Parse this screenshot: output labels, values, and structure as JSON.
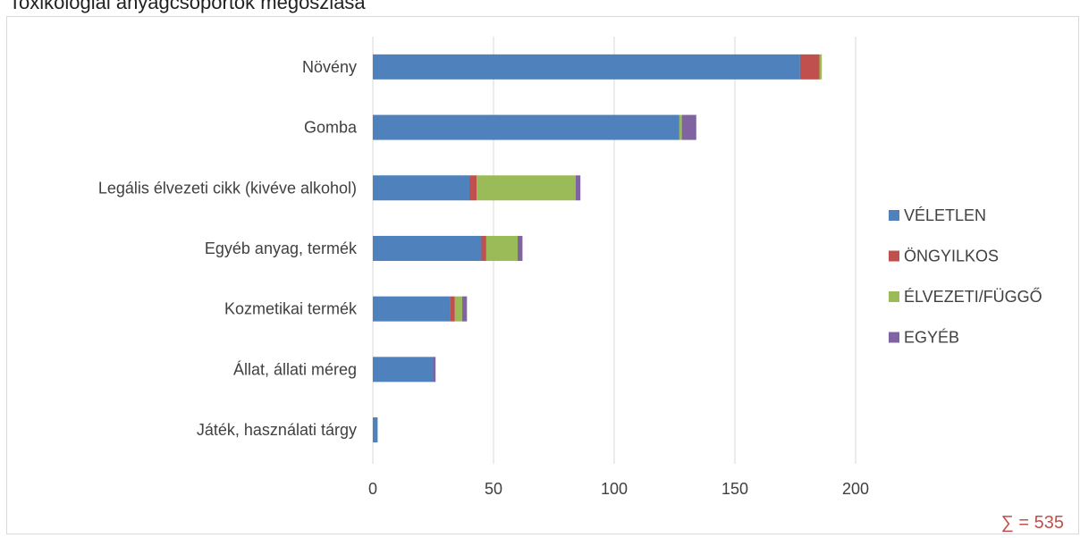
{
  "header": {
    "title": "Toxikológiai anyagcsoportok megoszlása"
  },
  "total_label": "∑ = 535",
  "colors": {
    "veletlen": "#4f81bd",
    "ongyilkos": "#c0504d",
    "elvezeti": "#9bbb59",
    "egyeb": "#8064a2",
    "grid": "#d9d9d9",
    "text": "#404040"
  },
  "chart_data": {
    "type": "bar",
    "orientation": "horizontal",
    "stacked": true,
    "categories": [
      "Növény",
      "Gomba",
      "Legális élvezeti cikk (kivéve alkohol)",
      "Egyéb anyag, termék",
      "Kozmetikai termék",
      "Állat, állati méreg",
      "Játék, használati tárgy"
    ],
    "series": [
      {
        "name": "VÉLETLEN",
        "color": "#4f81bd",
        "values": [
          177,
          127,
          40,
          45,
          32,
          25,
          2
        ]
      },
      {
        "name": "ÖNGYILKOS",
        "color": "#c0504d",
        "values": [
          8,
          0,
          3,
          2,
          2,
          0,
          0
        ]
      },
      {
        "name": "ÉLVEZETI/FÜGGŐ",
        "color": "#9bbb59",
        "values": [
          1,
          1,
          41,
          13,
          3,
          0,
          0
        ]
      },
      {
        "name": "EGYÉB",
        "color": "#8064a2",
        "values": [
          0,
          6,
          2,
          2,
          2,
          1,
          0
        ]
      }
    ],
    "xlim": [
      0,
      200
    ],
    "xticks": [
      0,
      50,
      100,
      150,
      200
    ],
    "grid": true,
    "legend_position": "right",
    "xlabel": "",
    "ylabel": ""
  }
}
